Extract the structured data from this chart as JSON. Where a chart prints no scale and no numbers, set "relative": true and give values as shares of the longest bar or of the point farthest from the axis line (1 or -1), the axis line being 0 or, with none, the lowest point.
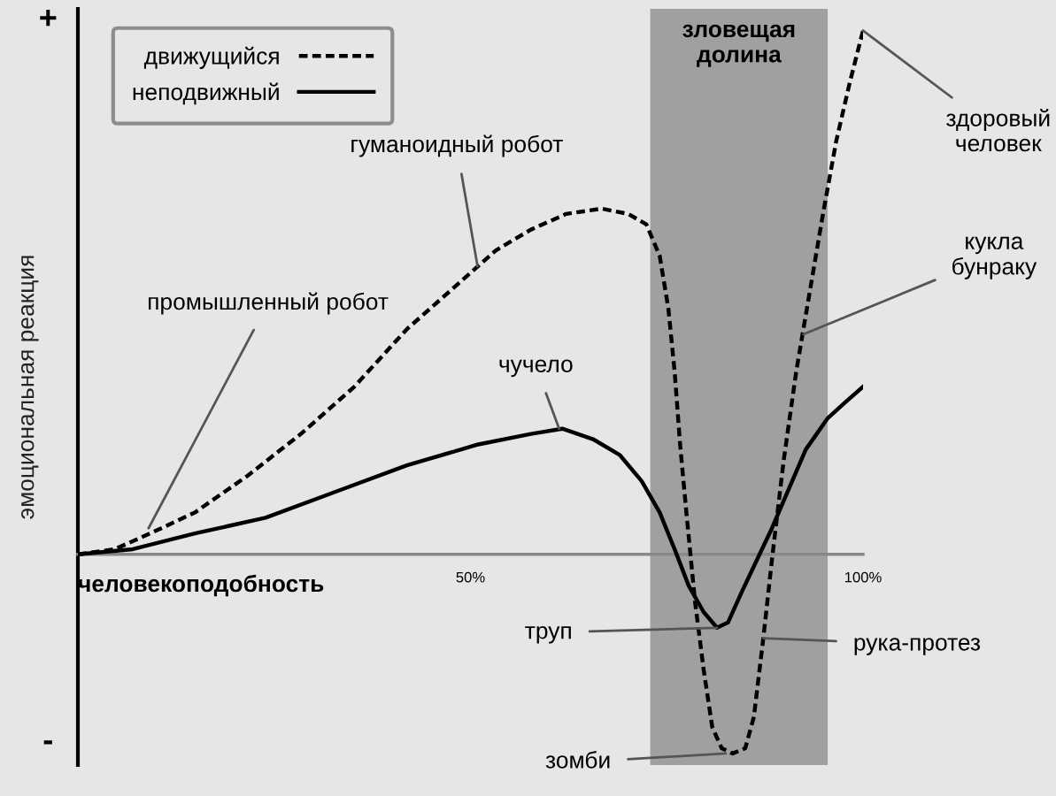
{
  "chart_data": {
    "type": "line",
    "relative": true,
    "xlabel": "человекоподобность",
    "ylabel": "эмоциональная реакция",
    "xlim": [
      0,
      100
    ],
    "xticks": [
      {
        "value": 50,
        "label": "50%"
      },
      {
        "value": 100,
        "label": "100%"
      }
    ],
    "legend": "top left",
    "grid": false,
    "series": [
      {
        "name": "движущийся",
        "color": "#000000",
        "line_style": "dashed",
        "x": [
          0,
          4.7,
          9.2,
          14.9,
          21.6,
          28.4,
          35.2,
          41.9,
          48.7,
          53.2,
          57.7,
          62.2,
          66.7,
          70.1,
          72.4,
          74.1,
          75.2,
          76.0,
          76.7,
          77.5,
          78.6,
          79.7,
          80.8,
          82.0,
          83.4,
          85.0,
          86.1,
          87.3,
          88.4,
          89.9,
          91.5,
          93.2,
          94.9,
          96.6,
          98.3,
          100
        ],
        "values": [
          0,
          0.01,
          0.04,
          0.08,
          0.15,
          0.23,
          0.32,
          0.43,
          0.52,
          0.58,
          0.62,
          0.65,
          0.66,
          0.65,
          0.63,
          0.57,
          0.47,
          0.35,
          0.21,
          0.08,
          -0.09,
          -0.22,
          -0.33,
          -0.37,
          -0.38,
          -0.37,
          -0.31,
          -0.16,
          -0.01,
          0.18,
          0.35,
          0.5,
          0.65,
          0.79,
          0.9,
          1.0
        ]
      },
      {
        "name": "неподвижный",
        "color": "#000000",
        "line_style": "solid",
        "x": [
          0,
          7.0,
          14.9,
          23.9,
          32.9,
          41.9,
          51.0,
          57.7,
          61.7,
          65.6,
          69.0,
          71.8,
          74.1,
          76.0,
          77.8,
          79.7,
          81.4,
          82.8,
          84.6,
          86.5,
          88.4,
          90.4,
          92.7,
          95.5,
          97.7,
          100
        ],
        "values": [
          0,
          0.01,
          0.04,
          0.07,
          0.12,
          0.17,
          0.21,
          0.23,
          0.24,
          0.22,
          0.19,
          0.14,
          0.08,
          0.01,
          -0.06,
          -0.11,
          -0.14,
          -0.13,
          -0.07,
          -0.01,
          0.05,
          0.12,
          0.2,
          0.26,
          0.29,
          0.32
        ]
      }
    ],
    "bands": [
      {
        "axis": "x",
        "from": 72.9,
        "to": 95.5,
        "label": "зловещая\nдолина",
        "color": "#a0a0a0"
      }
    ],
    "annotations": [
      {
        "text": "промышленный робот",
        "x": 9.0,
        "y": 0.05
      },
      {
        "text": "гуманоидный робот",
        "x": 50.9,
        "y": 0.55
      },
      {
        "text": "чучело",
        "x": 61.3,
        "y": 0.24
      },
      {
        "text": "здоровый\nчеловек",
        "x": 100,
        "y": 1.0
      },
      {
        "text": "кукла\nбунраку",
        "x": 92.4,
        "y": 0.42
      },
      {
        "text": "труп",
        "x": 81.4,
        "y": -0.14
      },
      {
        "text": "рука-протез",
        "x": 87.3,
        "y": -0.16
      },
      {
        "text": "зомби",
        "x": 82.5,
        "y": -0.38
      },
      "+",
      "-"
    ]
  }
}
